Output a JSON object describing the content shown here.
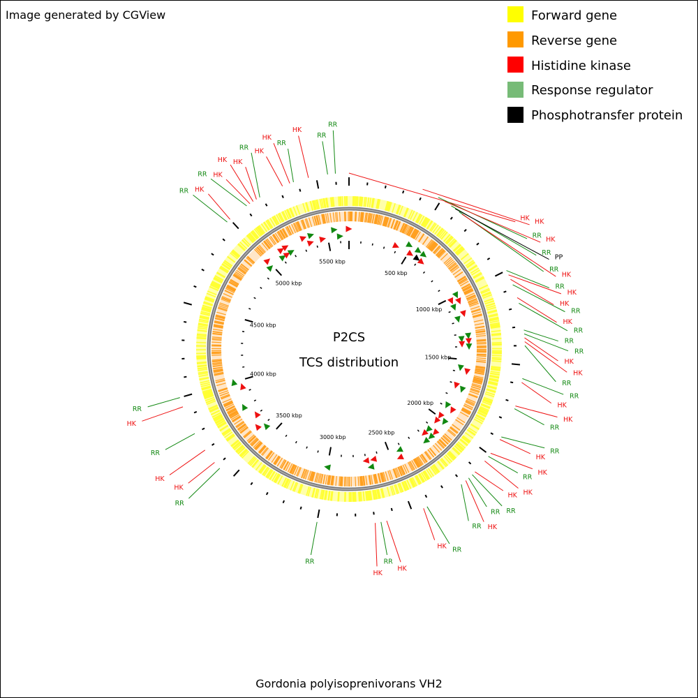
{
  "credit": "Image generated by CGView",
  "title": "P2CS",
  "subtitle": "TCS distribution",
  "caption": "Gordonia polyisoprenivorans VH2",
  "genome_length_kbp": 5670,
  "legend": [
    {
      "label": "Forward gene",
      "color": "#ffff00"
    },
    {
      "label": "Reverse gene",
      "color": "#ff9900"
    },
    {
      "label": "Histidine kinase",
      "color": "#ff0000"
    },
    {
      "label": "Response regulator",
      "color": "#77bb77"
    },
    {
      "label": "Phosphotransfer protein",
      "color": "#000000"
    }
  ],
  "colors": {
    "HK": "#ee1111",
    "RR": "#118811",
    "PP": "#000000",
    "forward": "#ffff33",
    "reverse": "#ffa020",
    "backbone": "#7a7a7a"
  },
  "tick_labels": [
    {
      "kbp": 500,
      "label": "500 kbp"
    },
    {
      "kbp": 1000,
      "label": "1000 kbp"
    },
    {
      "kbp": 1500,
      "label": "1500 kbp"
    },
    {
      "kbp": 2000,
      "label": "2000 kbp"
    },
    {
      "kbp": 2500,
      "label": "2500 kbp"
    },
    {
      "kbp": 3000,
      "label": "3000 kbp"
    },
    {
      "kbp": 3500,
      "label": "3500 kbp"
    },
    {
      "kbp": 4000,
      "label": "4000 kbp"
    },
    {
      "kbp": 4500,
      "label": "4500 kbp"
    },
    {
      "kbp": 5000,
      "label": "5000 kbp"
    },
    {
      "kbp": 5500,
      "label": "5500 kbp"
    }
  ],
  "callouts": [
    {
      "type": "HK",
      "kbp": 5670,
      "label": "HK"
    },
    {
      "type": "HK",
      "kbp": 390,
      "label": "HK"
    },
    {
      "type": "RR",
      "kbp": 480,
      "label": "RR"
    },
    {
      "type": "HK",
      "kbp": 520,
      "label": "HK"
    },
    {
      "type": "RR",
      "kbp": 560,
      "label": "RR"
    },
    {
      "type": "PP",
      "kbp": 585,
      "label": "PP"
    },
    {
      "type": "RR",
      "kbp": 610,
      "label": "RR"
    },
    {
      "type": "HK",
      "kbp": 630,
      "label": "HK"
    },
    {
      "type": "RR",
      "kbp": 1000,
      "label": "RR"
    },
    {
      "type": "HK",
      "kbp": 1025,
      "label": "HK"
    },
    {
      "type": "HK",
      "kbp": 1050,
      "label": "HK"
    },
    {
      "type": "RR",
      "kbp": 1080,
      "label": "RR"
    },
    {
      "type": "HK",
      "kbp": 1150,
      "label": "HK"
    },
    {
      "type": "RR",
      "kbp": 1180,
      "label": "RR"
    },
    {
      "type": "RR",
      "kbp": 1320,
      "label": "RR"
    },
    {
      "type": "RR",
      "kbp": 1340,
      "label": "RR"
    },
    {
      "type": "HK",
      "kbp": 1360,
      "label": "HK"
    },
    {
      "type": "HK",
      "kbp": 1380,
      "label": "HK"
    },
    {
      "type": "RR",
      "kbp": 1400,
      "label": "RR"
    },
    {
      "type": "RR",
      "kbp": 1570,
      "label": "RR"
    },
    {
      "type": "HK",
      "kbp": 1590,
      "label": "HK"
    },
    {
      "type": "HK",
      "kbp": 1715,
      "label": "HK"
    },
    {
      "type": "RR",
      "kbp": 1730,
      "label": "RR"
    },
    {
      "type": "RR",
      "kbp": 1890,
      "label": "RR"
    },
    {
      "type": "HK",
      "kbp": 1905,
      "label": "HK"
    },
    {
      "type": "HK",
      "kbp": 1990,
      "label": "HK"
    },
    {
      "type": "RR",
      "kbp": 2010,
      "label": "RR"
    },
    {
      "type": "HK",
      "kbp": 2040,
      "label": "HK"
    },
    {
      "type": "HK",
      "kbp": 2115,
      "label": "HK"
    },
    {
      "type": "RR",
      "kbp": 2135,
      "label": "RR"
    },
    {
      "type": "RR",
      "kbp": 2160,
      "label": "RR"
    },
    {
      "type": "HK",
      "kbp": 2180,
      "label": "HK"
    },
    {
      "type": "RR",
      "kbp": 2210,
      "label": "RR"
    },
    {
      "type": "RR",
      "kbp": 2420,
      "label": "RR"
    },
    {
      "type": "HK",
      "kbp": 2440,
      "label": "HK"
    },
    {
      "type": "HK",
      "kbp": 2640,
      "label": "HK"
    },
    {
      "type": "RR",
      "kbp": 2670,
      "label": "RR"
    },
    {
      "type": "HK",
      "kbp": 2700,
      "label": "HK"
    },
    {
      "type": "RR",
      "kbp": 3000,
      "label": "RR"
    },
    {
      "type": "RR",
      "kbp": 3580,
      "label": "RR"
    },
    {
      "type": "HK",
      "kbp": 3620,
      "label": "HK"
    },
    {
      "type": "HK",
      "kbp": 3700,
      "label": "HK"
    },
    {
      "type": "RR",
      "kbp": 3800,
      "label": "RR"
    },
    {
      "type": "HK",
      "kbp": 3950,
      "label": "HK"
    },
    {
      "type": "RR",
      "kbp": 4000,
      "label": "RR"
    },
    {
      "type": "RR",
      "kbp": 4980,
      "label": "RR"
    },
    {
      "type": "HK",
      "kbp": 5000,
      "label": "HK"
    },
    {
      "type": "RR",
      "kbp": 5110,
      "label": "RR"
    },
    {
      "type": "HK",
      "kbp": 5130,
      "label": "HK"
    },
    {
      "type": "HK",
      "kbp": 5150,
      "label": "HK"
    },
    {
      "type": "HK",
      "kbp": 5170,
      "label": "HK"
    },
    {
      "type": "RR",
      "kbp": 5190,
      "label": "RR"
    },
    {
      "type": "HK",
      "kbp": 5320,
      "label": "HK"
    },
    {
      "type": "HK",
      "kbp": 5360,
      "label": "HK"
    },
    {
      "type": "RR",
      "kbp": 5380,
      "label": "RR"
    },
    {
      "type": "HK",
      "kbp": 5460,
      "label": "HK"
    },
    {
      "type": "RR",
      "kbp": 5560,
      "label": "RR"
    },
    {
      "type": "RR",
      "kbp": 5600,
      "label": "RR"
    }
  ]
}
